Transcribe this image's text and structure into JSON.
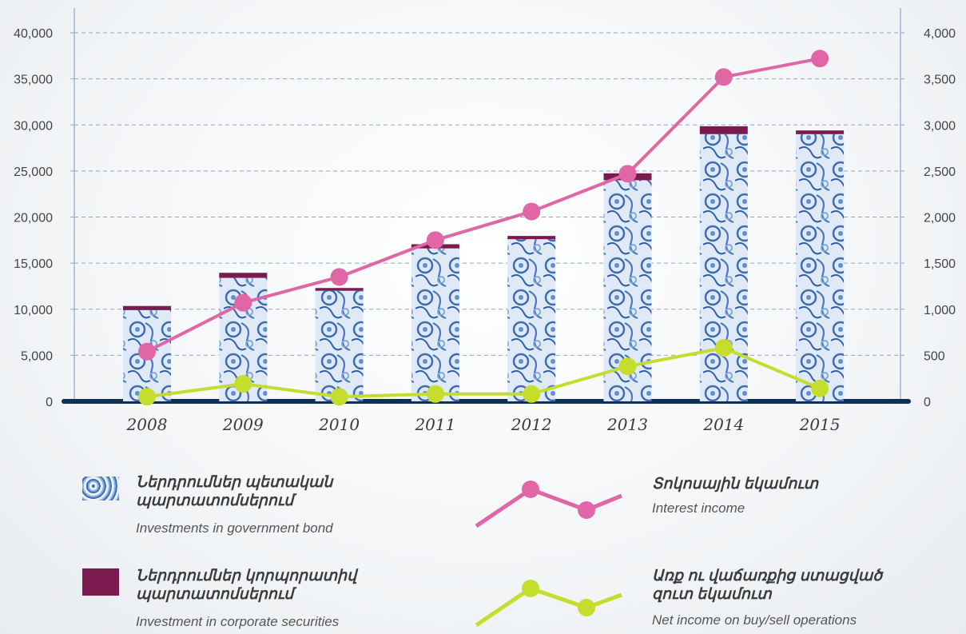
{
  "chart_data": {
    "type": "bar",
    "categories": [
      "2008",
      "2009",
      "2010",
      "2011",
      "2012",
      "2013",
      "2014",
      "2015"
    ],
    "left_axis": {
      "ylim": [
        0,
        40000
      ],
      "ticks": [
        "0",
        "5,000",
        "10,000",
        "15,000",
        "20,000",
        "25,000",
        "30,000",
        "35,000",
        "40,000"
      ],
      "ticks_values": [
        0,
        5000,
        10000,
        15000,
        20000,
        25000,
        30000,
        35000,
        40000
      ]
    },
    "right_axis": {
      "ylim": [
        0,
        4000
      ],
      "ticks": [
        "0",
        "500",
        "1,000",
        "1,500",
        "2,000",
        "2,500",
        "3,000",
        "3,500",
        "4,000"
      ],
      "ticks_values": [
        0,
        500,
        1000,
        1500,
        2000,
        2500,
        3000,
        3500,
        4000
      ]
    },
    "grid": true,
    "series": [
      {
        "name": "Investments in government bond",
        "type": "bar-stacked",
        "axis": "left",
        "color": "#6f9bd6",
        "values": [
          9900,
          13400,
          12000,
          16600,
          17600,
          24000,
          29000,
          29000
        ]
      },
      {
        "name": "Investment in corporate securities",
        "type": "bar-stacked",
        "axis": "left",
        "color": "#7a1a4f",
        "values": [
          450,
          550,
          300,
          450,
          350,
          750,
          850,
          400
        ]
      },
      {
        "name": "Interest income",
        "type": "line",
        "axis": "right",
        "color": "#e066a6",
        "values": [
          540,
          1070,
          1350,
          1750,
          2060,
          2470,
          3520,
          3720
        ]
      },
      {
        "name": "Net income on buy/sell operations",
        "type": "line",
        "axis": "right",
        "color": "#c5dd2c",
        "values": [
          50,
          190,
          50,
          80,
          80,
          380,
          580,
          140
        ]
      }
    ]
  },
  "legend": {
    "bond": {
      "title": "Ներդրումներ պետական պարտատոմսերում",
      "subtitle": "Investments in government bond"
    },
    "corp": {
      "title": "Ներդրումներ կորպորատիվ պարտատոմսերում",
      "subtitle": "Investment in corporate securities"
    },
    "interest": {
      "title": "Տոկոսային եկամուտ",
      "subtitle": "Interest income"
    },
    "net": {
      "title": "Առք ու վաճառքից ստացված զուտ եկամուտ",
      "subtitle": "Net income on buy/sell operations"
    }
  }
}
